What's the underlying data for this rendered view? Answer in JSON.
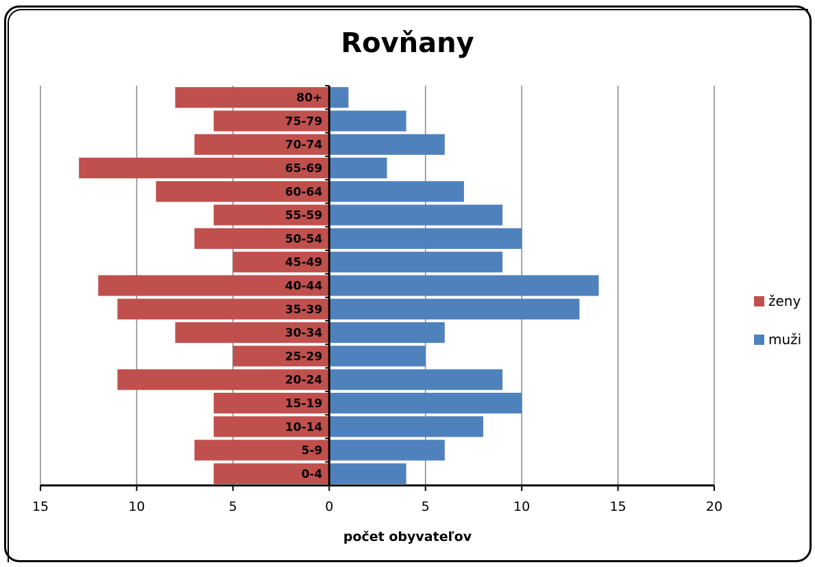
{
  "chart_data": {
    "type": "bar",
    "orientation": "horizontal",
    "title": "Rovňany",
    "xlabel": "počet obyvateľov",
    "ylabel": "",
    "categories": [
      "0-4",
      "5-9",
      "10-14",
      "15-19",
      "20-24",
      "25-29",
      "30-34",
      "35-39",
      "40-44",
      "45-49",
      "50-54",
      "55-59",
      "60-64",
      "65-69",
      "70-74",
      "75-79",
      "80+"
    ],
    "series": [
      {
        "name": "ženy",
        "color": "#c0504d",
        "values": [
          6,
          7,
          6,
          6,
          11,
          5,
          8,
          11,
          12,
          5,
          7,
          6,
          9,
          13,
          7,
          6,
          8
        ]
      },
      {
        "name": "muži",
        "color": "#4f81bd",
        "values": [
          4,
          6,
          8,
          10,
          9,
          5,
          6,
          13,
          14,
          9,
          10,
          9,
          7,
          3,
          6,
          4,
          1
        ]
      }
    ],
    "xlim": [
      -15,
      20
    ],
    "x_ticks": [
      -15,
      -10,
      -5,
      0,
      5,
      10,
      15,
      20
    ],
    "x_tick_labels": [
      "15",
      "10",
      "5",
      "0",
      "5",
      "10",
      "15",
      "20"
    ],
    "grid": true,
    "legend_position": "right"
  }
}
